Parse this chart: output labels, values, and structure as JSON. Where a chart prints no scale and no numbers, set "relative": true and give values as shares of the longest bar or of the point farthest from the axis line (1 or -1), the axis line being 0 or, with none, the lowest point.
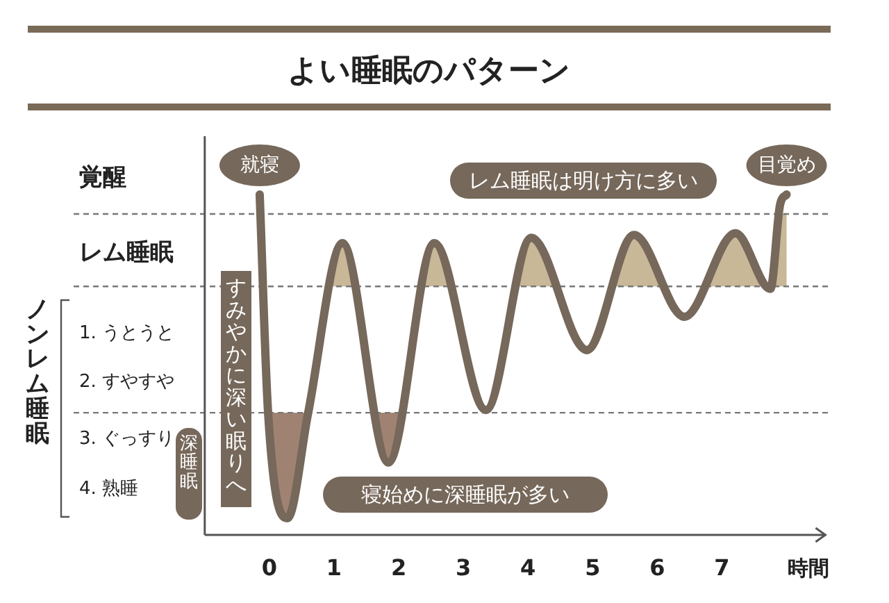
{
  "chart_data": {
    "type": "line",
    "title": "よい睡眠のパターン",
    "xlabel": "時間",
    "relative": true,
    "x": [
      -0.15,
      -0.02,
      0.28,
      0.6,
      1.13,
      1.84,
      2.55,
      3.35,
      4.05,
      4.91,
      5.64,
      6.42,
      7.21,
      7.75,
      7.9,
      8.0
    ],
    "series": [
      {
        "color": "#76685a",
        "values": [
          1,
          0.359,
          0.049,
          0.359,
          0.857,
          0.213,
          0.857,
          0.367,
          0.873,
          0.543,
          0.881,
          0.641,
          0.886,
          0.723,
          0.971,
          1
        ]
      }
    ],
    "xlim": [
      -1,
      8.6
    ],
    "xticks": [
      0,
      1,
      2,
      3,
      4,
      5,
      6,
      7
    ],
    "ref_lines": [
      {
        "axis": "y",
        "value": 0.943,
        "color": "#777777",
        "line_style": "dashed"
      },
      {
        "axis": "y",
        "value": 0.73,
        "color": "#777777",
        "line_style": "dashed"
      },
      {
        "axis": "y",
        "value": 0.359,
        "color": "#777777",
        "line_style": "dashed"
      }
    ],
    "bands": [
      {
        "axis": "y",
        "from": 0.73,
        "to": 0.943,
        "color": "#c8b898"
      },
      {
        "axis": "y",
        "from": 0,
        "to": 0.359,
        "color": "#a08272"
      }
    ],
    "annotations": [
      {
        "text": "就寝",
        "x": -0.15,
        "y": 1
      },
      {
        "text": "目覚め",
        "x": 8.0,
        "y": 1
      },
      "レム睡眠は明け方に多い",
      "すみやかに深い眠りへ",
      "寝始めに深睡眠が多い",
      "深睡眠",
      "ノンレム睡眠",
      "覚醒",
      "レム睡眠",
      "1. うとうと",
      "2. すやすや",
      "3. ぐっすり",
      "4. 熟睡"
    ],
    "marker": "none",
    "line_style": "solid"
  }
}
